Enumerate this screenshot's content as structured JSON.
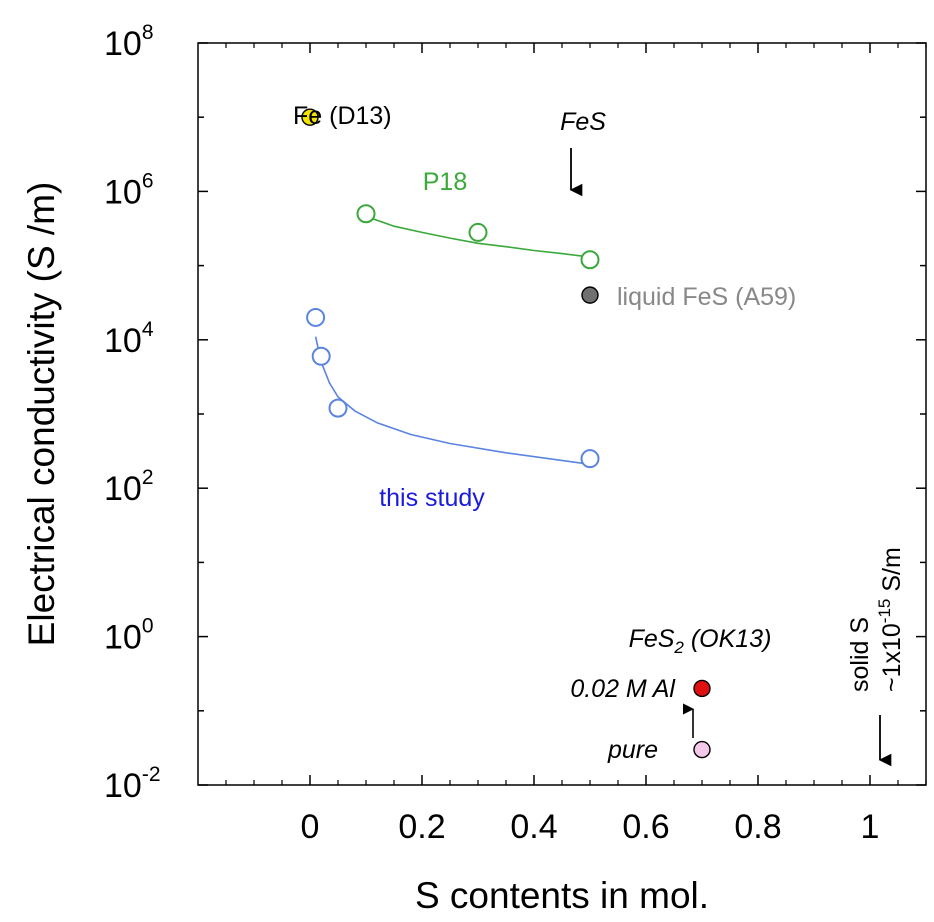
{
  "chart_data": {
    "type": "scatter",
    "title": "",
    "xlabel": "S contents in mol.",
    "ylabel": "Electrical conductivity (S /m)",
    "xlim": [
      -0.2,
      1.1
    ],
    "ylim": [
      -2,
      8
    ],
    "y_scale": "log10",
    "grid": false,
    "x_ticks": [
      {
        "value": 0,
        "label": "0"
      },
      {
        "value": 0.2,
        "label": "0.2"
      },
      {
        "value": 0.4,
        "label": "0.4"
      },
      {
        "value": 0.6,
        "label": "0.6"
      },
      {
        "value": 0.8,
        "label": "0.8"
      },
      {
        "value": 1,
        "label": "1"
      }
    ],
    "y_ticks": [
      {
        "value": 8,
        "base": "10",
        "exp": "8"
      },
      {
        "value": 6,
        "base": "10",
        "exp": "6"
      },
      {
        "value": 4,
        "base": "10",
        "exp": "4"
      },
      {
        "value": 2,
        "base": "10",
        "exp": "2"
      },
      {
        "value": 0,
        "base": "10",
        "exp": "0"
      },
      {
        "value": -2,
        "base": "10",
        "exp": "-2"
      }
    ],
    "series": [
      {
        "name": "this study",
        "color": "#5b84e0",
        "marker": "open",
        "points": [
          {
            "x": 0.01,
            "y": 20000.0
          },
          {
            "x": 0.02,
            "y": 6000.0
          },
          {
            "x": 0.05,
            "y": 1200.0
          },
          {
            "x": 0.5,
            "y": 250
          }
        ],
        "fit": [
          {
            "x": 0.01,
            "y": 11000.0
          },
          {
            "x": 0.02,
            "y": 5000.0
          },
          {
            "x": 0.035,
            "y": 2600.0
          },
          {
            "x": 0.05,
            "y": 1700.0
          },
          {
            "x": 0.08,
            "y": 1100.0
          },
          {
            "x": 0.12,
            "y": 760
          },
          {
            "x": 0.18,
            "y": 530
          },
          {
            "x": 0.25,
            "y": 400
          },
          {
            "x": 0.35,
            "y": 300
          },
          {
            "x": 0.5,
            "y": 210
          }
        ]
      },
      {
        "name": "P18",
        "color": "#3aa83a",
        "marker": "open",
        "points": [
          {
            "x": 0.1,
            "y": 500000.0
          },
          {
            "x": 0.3,
            "y": 280000.0
          },
          {
            "x": 0.5,
            "y": 120000.0
          }
        ],
        "fit": [
          {
            "x": 0.1,
            "y": 460000.0
          },
          {
            "x": 0.15,
            "y": 340000.0
          },
          {
            "x": 0.2,
            "y": 280000.0
          },
          {
            "x": 0.25,
            "y": 235000.0
          },
          {
            "x": 0.3,
            "y": 200000.0
          },
          {
            "x": 0.35,
            "y": 180000.0
          },
          {
            "x": 0.4,
            "y": 160000.0
          },
          {
            "x": 0.45,
            "y": 145000.0
          },
          {
            "x": 0.5,
            "y": 130000.0
          }
        ]
      },
      {
        "name": "Fe (D13)",
        "color": "#f2e400",
        "marker": "filled",
        "points": [
          {
            "x": 0,
            "y": 10000000.0
          }
        ]
      },
      {
        "name": "liquid FeS (A59)",
        "color": "#707070",
        "marker": "filled",
        "points": [
          {
            "x": 0.5,
            "y": 40000.0
          }
        ]
      },
      {
        "name": "FeS2 (OK13) 0.02 M Al",
        "color": "#e01010",
        "marker": "filled",
        "points": [
          {
            "x": 0.7,
            "y": 0.2
          }
        ]
      },
      {
        "name": "FeS2 (OK13) pure",
        "color": "#f4c8e8",
        "marker": "filled",
        "points": [
          {
            "x": 0.7,
            "y": 0.03
          }
        ]
      }
    ],
    "annotations": {
      "fe_d13": "Fe (D13)",
      "fes": "FeS",
      "p18": "P18",
      "liquid_fes": "liquid FeS (A59)",
      "this_study": "this study",
      "fes2_main": "FeS",
      "fes2_sub": "2",
      "fes2_rest": " (OK13)",
      "al": "0.02 M Al",
      "pure": "pure",
      "solid_s": "solid S",
      "solid_s_value_pre": "~1x10",
      "solid_s_value_exp": "-15",
      "solid_s_value_post": " S/m"
    }
  }
}
